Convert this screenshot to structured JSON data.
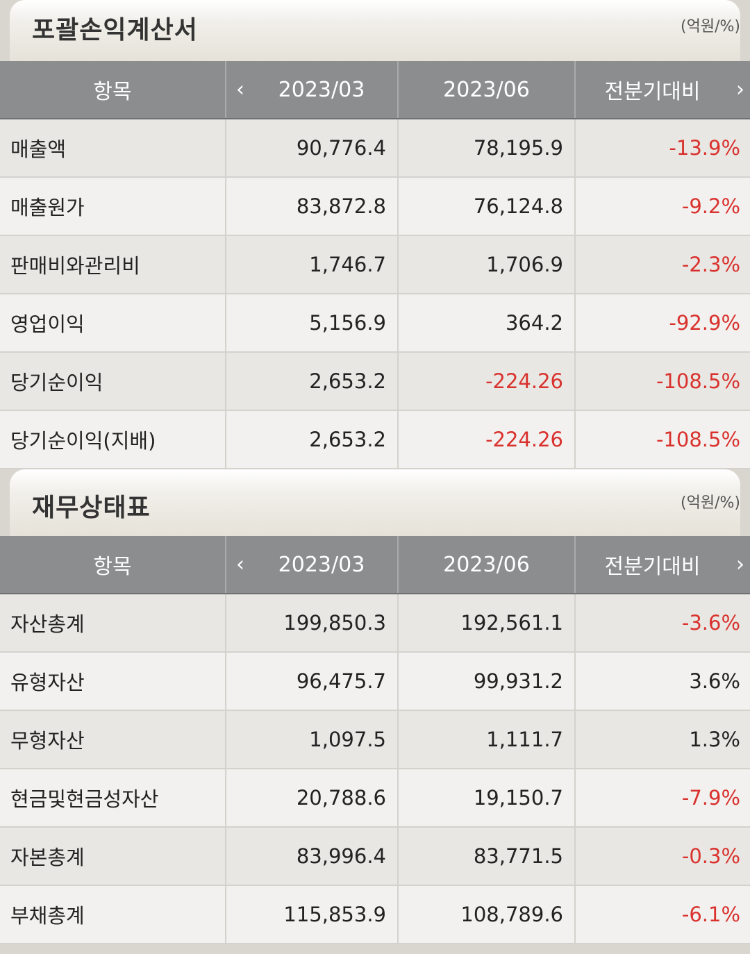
{
  "income": {
    "title": "포괄손익계산서",
    "unit": "(억원/%)",
    "headers": {
      "item": "항목",
      "prev": "2023/03",
      "curr": "2023/06",
      "diff": "전분기대비"
    },
    "rows": [
      {
        "label": "매출액",
        "prev": "90,776.4",
        "curr": "78,195.9",
        "diff": "-13.9%"
      },
      {
        "label": "매출원가",
        "prev": "83,872.8",
        "curr": "76,124.8",
        "diff": "-9.2%"
      },
      {
        "label": "판매비와관리비",
        "prev": "1,746.7",
        "curr": "1,706.9",
        "diff": "-2.3%"
      },
      {
        "label": "영업이익",
        "prev": "5,156.9",
        "curr": "364.2",
        "diff": "-92.9%"
      },
      {
        "label": "당기순이익",
        "prev": "2,653.2",
        "curr": "-224.26",
        "diff": "-108.5%"
      },
      {
        "label": "당기순이익(지배)",
        "prev": "2,653.2",
        "curr": "-224.26",
        "diff": "-108.5%"
      }
    ]
  },
  "balance": {
    "title": "재무상태표",
    "unit": "(억원/%)",
    "headers": {
      "item": "항목",
      "prev": "2023/03",
      "curr": "2023/06",
      "diff": "전분기대비"
    },
    "rows": [
      {
        "label": "자산총계",
        "prev": "199,850.3",
        "curr": "192,561.1",
        "diff": "-3.6%"
      },
      {
        "label": "유형자산",
        "prev": "96,475.7",
        "curr": "99,931.2",
        "diff": "3.6%"
      },
      {
        "label": "무형자산",
        "prev": "1,097.5",
        "curr": "1,111.7",
        "diff": "1.3%"
      },
      {
        "label": "현금및현금성자산",
        "prev": "20,788.6",
        "curr": "19,150.7",
        "diff": "-7.9%"
      },
      {
        "label": "자본총계",
        "prev": "83,996.4",
        "curr": "83,771.5",
        "diff": "-0.3%"
      },
      {
        "label": "부채총계",
        "prev": "115,853.9",
        "curr": "108,789.6",
        "diff": "-6.1%"
      }
    ]
  },
  "colors": {
    "negative": "#d9322e",
    "header_bg": "#8c8d8f"
  },
  "icons": {
    "prev": "chevron-left-icon",
    "next": "chevron-right-icon"
  }
}
